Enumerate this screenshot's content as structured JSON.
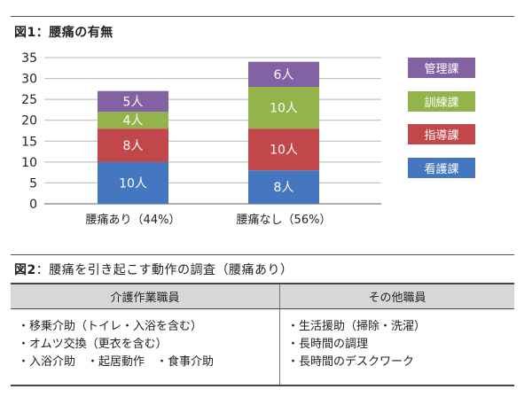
{
  "figure1": {
    "number": "図1",
    "title": "腰痛の有無"
  },
  "chart_data": {
    "type": "bar",
    "stacked": true,
    "categories": [
      "腰痛あり（44%）",
      "腰痛なし（56%）"
    ],
    "series": [
      {
        "name": "看護課",
        "color": "#4477c0",
        "values": [
          10,
          8
        ],
        "labels": [
          "10人",
          "8人"
        ]
      },
      {
        "name": "指導課",
        "color": "#c1474a",
        "values": [
          8,
          10
        ],
        "labels": [
          "8人",
          "10人"
        ]
      },
      {
        "name": "訓練課",
        "color": "#93b34b",
        "values": [
          4,
          10
        ],
        "labels": [
          "4人",
          "10人"
        ]
      },
      {
        "name": "管理課",
        "color": "#8262a3",
        "values": [
          5,
          6
        ],
        "labels": [
          "5人",
          "6人"
        ]
      }
    ],
    "ylim": [
      0,
      35
    ],
    "yticks": [
      0,
      5,
      10,
      15,
      20,
      25,
      30,
      35
    ],
    "ytick_labels": [
      "0",
      "5",
      "10",
      "15",
      "20",
      "25",
      "30",
      "35"
    ],
    "grid": true,
    "legend_position": "right",
    "legend_order": [
      "管理課",
      "訓練課",
      "指導課",
      "看護課"
    ]
  },
  "figure2": {
    "number": "図2",
    "title": "腰痛を引き起こす動作の調査（腰痛あり）",
    "headers": [
      "介護作業職員",
      "その他職員"
    ],
    "left_items": [
      "・移乗介助（トイレ・入浴を含む）",
      "・オムツ交換（更衣を含む）",
      "・入浴介助　・起居動作　・食事介助"
    ],
    "right_items": [
      "・生活援助（掃除・洗濯）",
      "・長時間の調理",
      "・長時間のデスクワーク"
    ]
  }
}
